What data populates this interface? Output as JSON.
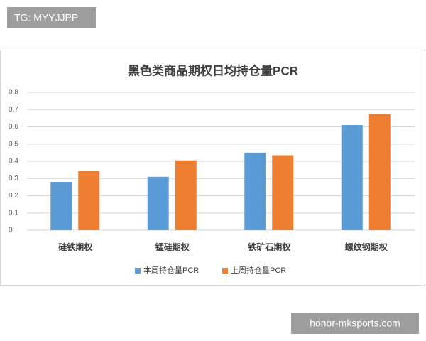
{
  "chart_data": {
    "type": "bar",
    "title": "黑色类商品期权日均持仓量PCR",
    "categories": [
      "硅铁期权",
      "锰硅期权",
      "铁矿石期权",
      "螺纹钢期权"
    ],
    "series": [
      {
        "name": "本周持仓量PCR",
        "color": "#5b9bd5",
        "values": [
          0.28,
          0.31,
          0.45,
          0.61
        ]
      },
      {
        "name": "上周持仓量PCR",
        "color": "#ed7d31",
        "values": [
          0.345,
          0.405,
          0.435,
          0.675
        ]
      }
    ],
    "ylim": [
      0,
      0.8
    ],
    "yticks": [
      0,
      0.1,
      0.2,
      0.3,
      0.4,
      0.5,
      0.6,
      0.7,
      0.8
    ],
    "grid": true,
    "legend": "bottom"
  },
  "watermarks": [
    "TG: MYYJJPP",
    "honor-mksports.com"
  ]
}
